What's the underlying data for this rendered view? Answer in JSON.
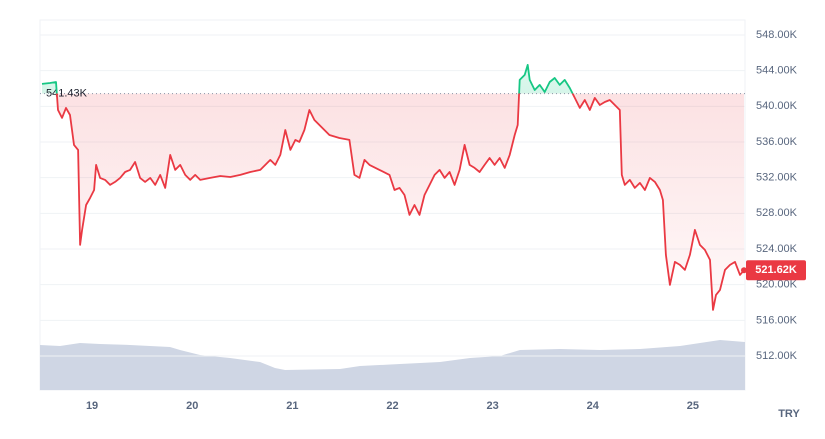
{
  "chart_data": {
    "type": "line",
    "x": [
      18.5,
      18.58,
      18.64,
      18.66,
      18.7,
      18.74,
      18.78,
      18.82,
      18.86,
      18.88,
      18.9,
      18.94,
      18.98,
      19.02,
      19.04,
      19.08,
      19.13,
      19.18,
      19.23,
      19.28,
      19.33,
      19.38,
      19.43,
      19.48,
      19.53,
      19.58,
      19.63,
      19.68,
      19.73,
      19.78,
      19.83,
      19.88,
      19.93,
      19.98,
      20.03,
      20.08,
      20.18,
      20.28,
      20.38,
      20.48,
      20.58,
      20.68,
      20.78,
      20.83,
      20.88,
      20.93,
      20.98,
      21.03,
      21.07,
      21.12,
      21.17,
      21.22,
      21.27,
      21.37,
      21.47,
      21.57,
      21.62,
      21.67,
      21.72,
      21.77,
      21.87,
      21.97,
      22.02,
      22.07,
      22.12,
      22.17,
      22.22,
      22.27,
      22.32,
      22.37,
      22.42,
      22.47,
      22.52,
      22.57,
      22.62,
      22.67,
      22.72,
      22.77,
      22.82,
      22.87,
      22.92,
      22.97,
      23.02,
      23.07,
      23.12,
      23.17,
      23.22,
      23.25,
      23.27,
      23.32,
      23.35,
      23.37,
      23.42,
      23.47,
      23.52,
      23.57,
      23.62,
      23.67,
      23.72,
      23.77,
      23.82,
      23.87,
      23.92,
      23.97,
      24.02,
      24.07,
      24.12,
      24.17,
      24.22,
      24.27,
      24.29,
      24.32,
      24.37,
      24.42,
      24.47,
      24.52,
      24.57,
      24.62,
      24.67,
      24.7,
      24.73,
      24.77,
      24.82,
      24.87,
      24.92,
      24.97,
      25.02,
      25.07,
      25.12,
      25.17,
      25.2,
      25.23,
      25.27,
      25.32,
      25.37,
      25.42,
      25.47,
      25.51
    ],
    "values": [
      542510,
      542620,
      542730,
      539590,
      538700,
      539820,
      539030,
      535670,
      535110,
      524460,
      526140,
      528940,
      529730,
      530620,
      533430,
      531970,
      531750,
      531190,
      531520,
      531970,
      532640,
      532870,
      533760,
      531970,
      531520,
      531970,
      531190,
      532310,
      530850,
      534550,
      532870,
      533430,
      532310,
      531750,
      532310,
      531750,
      531970,
      532190,
      532080,
      532310,
      532640,
      532870,
      533990,
      533430,
      534550,
      537350,
      535110,
      536230,
      536010,
      537350,
      539590,
      538470,
      537910,
      536790,
      536450,
      536230,
      532310,
      531970,
      533990,
      533430,
      532870,
      532310,
      530620,
      530850,
      530060,
      527820,
      528940,
      527820,
      530060,
      531190,
      532310,
      532870,
      531970,
      532640,
      531190,
      532870,
      535670,
      533430,
      533090,
      532640,
      533430,
      534210,
      533430,
      534210,
      533090,
      534550,
      536790,
      537910,
      542960,
      543520,
      544640,
      542960,
      541830,
      542400,
      541610,
      542730,
      543180,
      542400,
      542960,
      542060,
      540940,
      539820,
      540710,
      539590,
      540940,
      540150,
      540490,
      540710,
      540150,
      539590,
      532310,
      531190,
      531750,
      530850,
      531410,
      530620,
      531970,
      531520,
      530620,
      529500,
      523340,
      519980,
      522550,
      522220,
      521660,
      523340,
      526140,
      524460,
      523900,
      522780,
      517170,
      518850,
      519410,
      521660,
      522220,
      522550,
      521100,
      521620
    ],
    "color_up": "#16c784",
    "color_down": "#ea3943",
    "reference": {
      "value": 541430,
      "label": "541.43K"
    },
    "last_price": {
      "value": 521620,
      "label": "521.62K"
    },
    "currency": "TRY",
    "xlim": [
      18.48,
      25.52
    ],
    "ylim": [
      508190,
      549680
    ],
    "xticks": [
      19,
      20,
      21,
      22,
      23,
      24,
      25
    ],
    "yticks": [
      {
        "value": 512000,
        "label": "512.00K"
      },
      {
        "value": 516000,
        "label": "516.00K"
      },
      {
        "value": 520000,
        "label": "520.00K"
      },
      {
        "value": 524000,
        "label": "524.00K"
      },
      {
        "value": 528000,
        "label": "528.00K"
      },
      {
        "value": 532000,
        "label": "532.00K"
      },
      {
        "value": 536000,
        "label": "536.00K"
      },
      {
        "value": 540000,
        "label": "540.00K"
      },
      {
        "value": 544000,
        "label": "544.00K"
      },
      {
        "value": 548000,
        "label": "548.00K"
      }
    ],
    "grid": true
  }
}
